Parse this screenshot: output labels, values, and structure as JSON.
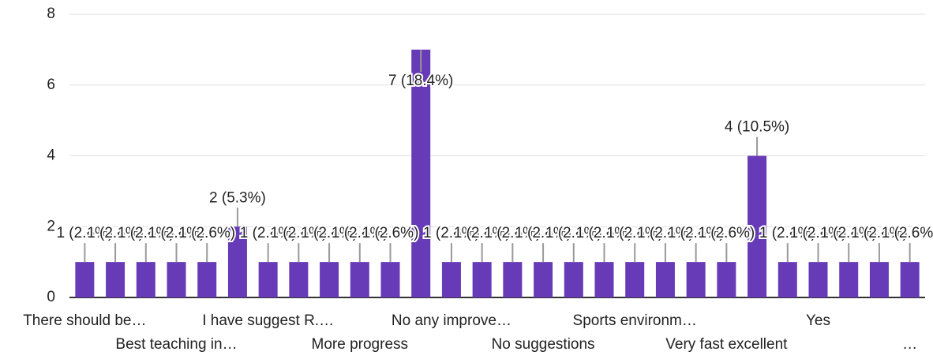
{
  "chart_data": {
    "type": "bar",
    "categories": [
      "There should be…",
      null,
      null,
      "Best teaching in…",
      null,
      null,
      "I have suggest R.…",
      null,
      null,
      "More progress",
      null,
      null,
      "No any improve…",
      null,
      null,
      "No suggestions",
      null,
      null,
      "Sports environm…",
      null,
      null,
      "Very fast excellent",
      null,
      null,
      "Yes",
      null,
      null,
      "…"
    ],
    "values": [
      1,
      1,
      1,
      1,
      1,
      2,
      1,
      1,
      1,
      1,
      1,
      7,
      1,
      1,
      1,
      1,
      1,
      1,
      1,
      1,
      1,
      1,
      4,
      1,
      1,
      1,
      1,
      1
    ],
    "value_labels": [
      "1 (2.6%)",
      "1 (2.6%)",
      "1 (2.6%)",
      "1 (2.6%)",
      "1 (2.6%)",
      "2 (5.3%)",
      "1 (2.6%)",
      "1 (2.6%)",
      "1 (2.6%)",
      "1 (2.6%)",
      "1 (2.6%)",
      "7 (18.4%)",
      "1 (2.6%)",
      "1 (2.6%)",
      "1 (2.6%)",
      "1 (2.6%)",
      "1 (2.6%)",
      "1 (2.6%)",
      "1 (2.6%)",
      "1 (2.6%)",
      "1 (2.6%)",
      "1 (2.6%)",
      "4 (10.5%)",
      "1 (2.6%)",
      "1 (2.6%)",
      "1 (2.6%)",
      "1 (2.6%)",
      "1 (2.6%)"
    ],
    "color": "#673ab7",
    "ylim": [
      0,
      8
    ],
    "yticks": [
      0,
      2,
      4,
      6,
      8
    ],
    "grid": true
  }
}
